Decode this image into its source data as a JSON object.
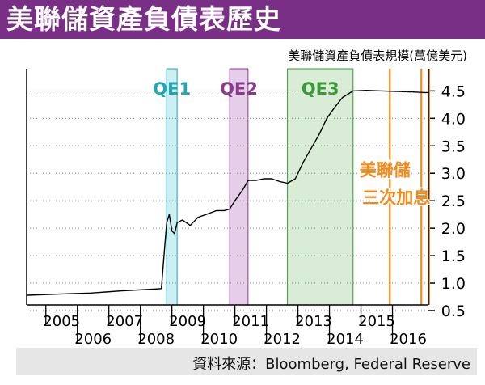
{
  "title": "美聯儲資產負債表歷史",
  "source": "資料來源：Bloomberg, Federal Reserve",
  "colors": {
    "title_bg": "#7a2f86",
    "qe1": "#1ea7b5",
    "qe2": "#8a3a8f",
    "qe3": "#3a9a3a",
    "hikes": "#f08a1c",
    "line": "#000000"
  },
  "chart_data": {
    "type": "line",
    "ylabel": "美聯儲資產負債表規模(萬億美元)",
    "ylim": [
      0.5,
      4.8
    ],
    "yticks": [
      0.5,
      1.0,
      1.5,
      2.0,
      2.5,
      3.0,
      3.5,
      4.0,
      4.5
    ],
    "ytick_labels": [
      "0.5",
      "1.0",
      "1.5",
      "2.0",
      "2.5",
      "3.0",
      "3.5",
      "4.0",
      "4.5"
    ],
    "xlim": [
      "2004-06",
      "2017-03"
    ],
    "xtick_labels_top": [
      "2005",
      "2007",
      "2009",
      "2011",
      "2013",
      "2015"
    ],
    "xtick_labels_bottom": [
      "2006",
      "2008",
      "2010",
      "2012",
      "2014",
      "2016"
    ],
    "qe_periods": [
      {
        "label": "QE1",
        "start": "2008-11",
        "end": "2009-03"
      },
      {
        "label": "QE2",
        "start": "2010-11",
        "end": "2011-06"
      },
      {
        "label": "QE3",
        "start": "2012-09",
        "end": "2014-10"
      }
    ],
    "rate_hikes": {
      "label_line1": "美聯儲",
      "label_line2": "三次加息",
      "dates": [
        "2015-12",
        "2016-12",
        "2017-03"
      ]
    },
    "series": [
      {
        "values": [
          [
            "2004-06",
            0.78
          ],
          [
            "2005-06",
            0.8
          ],
          [
            "2006-06",
            0.82
          ],
          [
            "2007-06",
            0.86
          ],
          [
            "2008-06",
            0.89
          ],
          [
            "2008-09",
            0.9
          ],
          [
            "2008-10",
            1.5
          ],
          [
            "2008-11",
            2.1
          ],
          [
            "2008-12",
            2.25
          ],
          [
            "2009-01",
            1.95
          ],
          [
            "2009-02",
            1.9
          ],
          [
            "2009-03",
            2.1
          ],
          [
            "2009-05",
            2.15
          ],
          [
            "2009-08",
            2.05
          ],
          [
            "2009-11",
            2.2
          ],
          [
            "2010-02",
            2.25
          ],
          [
            "2010-06",
            2.32
          ],
          [
            "2010-09",
            2.32
          ],
          [
            "2010-11",
            2.35
          ],
          [
            "2011-01",
            2.5
          ],
          [
            "2011-04",
            2.7
          ],
          [
            "2011-06",
            2.87
          ],
          [
            "2011-09",
            2.87
          ],
          [
            "2011-12",
            2.9
          ],
          [
            "2012-03",
            2.9
          ],
          [
            "2012-06",
            2.85
          ],
          [
            "2012-09",
            2.82
          ],
          [
            "2012-12",
            2.9
          ],
          [
            "2013-03",
            3.2
          ],
          [
            "2013-06",
            3.45
          ],
          [
            "2013-09",
            3.7
          ],
          [
            "2013-12",
            4.0
          ],
          [
            "2014-03",
            4.2
          ],
          [
            "2014-06",
            4.38
          ],
          [
            "2014-10",
            4.5
          ],
          [
            "2015-03",
            4.51
          ],
          [
            "2015-09",
            4.5
          ],
          [
            "2016-03",
            4.49
          ],
          [
            "2016-09",
            4.48
          ],
          [
            "2017-01",
            4.47
          ],
          [
            "2017-03",
            4.47
          ]
        ]
      }
    ]
  }
}
